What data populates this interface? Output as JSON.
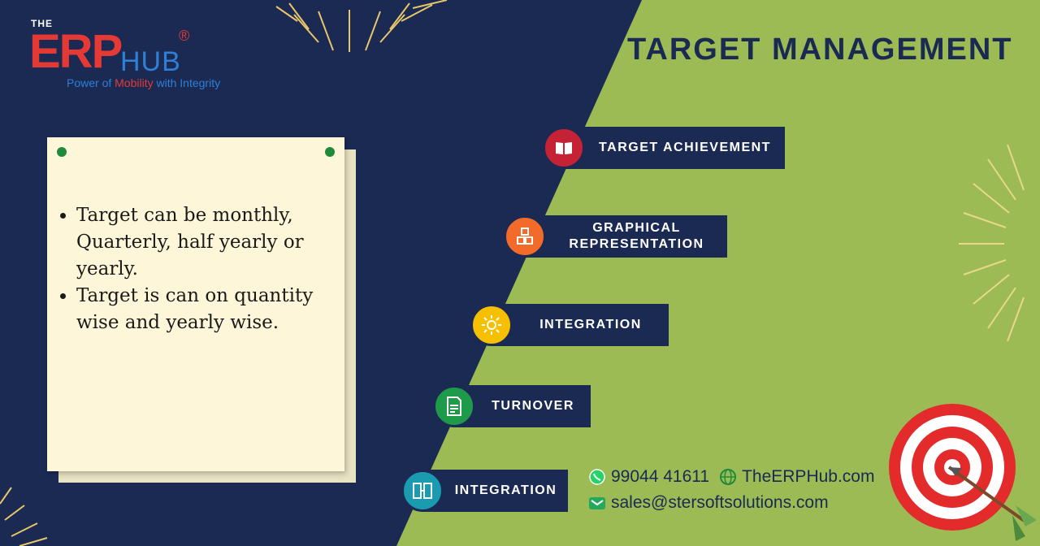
{
  "logo": {
    "the": "THE",
    "erp": "ERP",
    "hub": "HUB",
    "registered": "®",
    "tagline_part1": "Power of ",
    "tagline_part2": "Mobility",
    "tagline_part3": " with Integrity"
  },
  "title": "TARGET MANAGEMENT",
  "note": {
    "bullets": [
      "Target can be monthly, Quarterly, half yearly or yearly.",
      "Target is can on quantity wise and yearly wise."
    ]
  },
  "steps": [
    {
      "label": "TARGET ACHIEVEMENT",
      "icon": "book-icon",
      "color": "#c62235"
    },
    {
      "label": "GRAPHICAL\nREPRESENTATION",
      "icon": "cubes-icon",
      "color": "#f26b2b"
    },
    {
      "label": "INTEGRATION",
      "icon": "sun-icon",
      "color": "#f6c000"
    },
    {
      "label": "TURNOVER",
      "icon": "invoice-icon",
      "color": "#1f9a4a"
    },
    {
      "label": "INTEGRATION",
      "icon": "server-icon",
      "color": "#1a9bb0"
    }
  ],
  "contact": {
    "phone": "99044 41611",
    "website": "TheERPHub.com",
    "email": "sales@stersoftsolutions.com"
  },
  "colors": {
    "navy": "#1b2a52",
    "green": "#9cbb55",
    "note": "#fdf6d8",
    "accent_red": "#e53935",
    "accent_blue": "#2f7fd6"
  }
}
